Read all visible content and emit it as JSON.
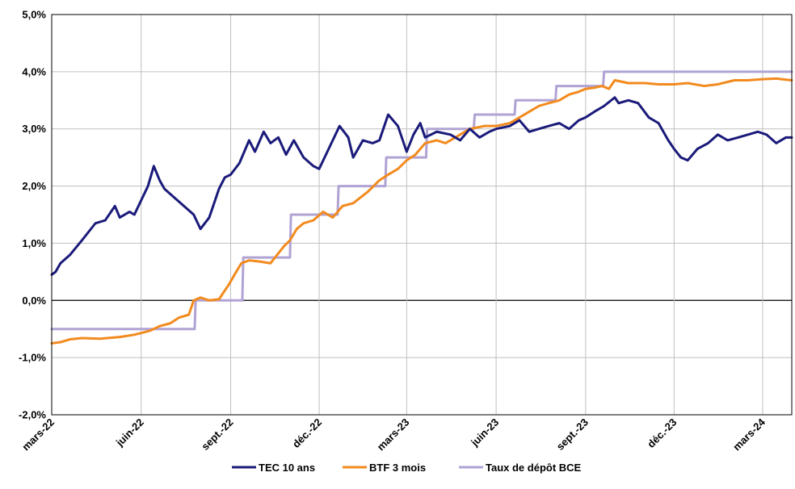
{
  "chart_data": {
    "type": "line",
    "title": "",
    "xlabel": "",
    "ylabel": "",
    "ylim": [
      -2.0,
      5.0
    ],
    "xlim": [
      "2022-03-01",
      "2024-03-31"
    ],
    "y_ticks": [
      -2.0,
      -1.0,
      0.0,
      1.0,
      2.0,
      3.0,
      4.0,
      5.0
    ],
    "y_tick_labels": [
      "-2,0%",
      "-1,0%",
      "0,0%",
      "1,0%",
      "2,0%",
      "3,0%",
      "4,0%",
      "5,0%"
    ],
    "x_ticks": [
      "2022-03-01",
      "2022-06-01",
      "2022-09-01",
      "2022-12-01",
      "2023-03-01",
      "2023-06-01",
      "2023-09-01",
      "2023-12-01",
      "2024-03-01"
    ],
    "x_tick_labels": [
      "mars-22",
      "juin-22",
      "sept.-22",
      "déc.-22",
      "mars-23",
      "juin-23",
      "sept.-23",
      "déc.-23",
      "mars-24"
    ],
    "grid": true,
    "legend_position": "bottom",
    "series": [
      {
        "name": "TEC 10 ans",
        "color": "#1a1a7a",
        "x": [
          "2022-03-01",
          "2022-03-05",
          "2022-03-10",
          "2022-03-20",
          "2022-04-01",
          "2022-04-15",
          "2022-04-25",
          "2022-05-05",
          "2022-05-10",
          "2022-05-20",
          "2022-05-25",
          "2022-06-01",
          "2022-06-08",
          "2022-06-14",
          "2022-06-20",
          "2022-06-25",
          "2022-07-05",
          "2022-07-15",
          "2022-07-25",
          "2022-08-01",
          "2022-08-10",
          "2022-08-20",
          "2022-08-26",
          "2022-09-01",
          "2022-09-10",
          "2022-09-20",
          "2022-09-26",
          "2022-10-05",
          "2022-10-12",
          "2022-10-20",
          "2022-10-28",
          "2022-11-05",
          "2022-11-15",
          "2022-11-25",
          "2022-12-01",
          "2022-12-08",
          "2022-12-15",
          "2022-12-22",
          "2022-12-31",
          "2023-01-05",
          "2023-01-15",
          "2023-01-25",
          "2023-02-01",
          "2023-02-10",
          "2023-02-20",
          "2023-03-01",
          "2023-03-08",
          "2023-03-15",
          "2023-03-20",
          "2023-04-01",
          "2023-04-15",
          "2023-04-25",
          "2023-05-05",
          "2023-05-15",
          "2023-05-25",
          "2023-06-01",
          "2023-06-15",
          "2023-06-25",
          "2023-07-05",
          "2023-07-15",
          "2023-07-25",
          "2023-08-05",
          "2023-08-15",
          "2023-08-25",
          "2023-09-01",
          "2023-09-10",
          "2023-09-20",
          "2023-10-01",
          "2023-10-05",
          "2023-10-15",
          "2023-10-25",
          "2023-11-05",
          "2023-11-15",
          "2023-11-25",
          "2023-12-01",
          "2023-12-08",
          "2023-12-15",
          "2023-12-25",
          "2024-01-05",
          "2024-01-15",
          "2024-01-25",
          "2024-02-05",
          "2024-02-15",
          "2024-02-25",
          "2024-03-05",
          "2024-03-15",
          "2024-03-25",
          "2024-03-31"
        ],
        "y": [
          0.45,
          0.5,
          0.65,
          0.8,
          1.05,
          1.35,
          1.4,
          1.65,
          1.45,
          1.55,
          1.5,
          1.75,
          2.0,
          2.35,
          2.1,
          1.95,
          1.8,
          1.65,
          1.5,
          1.25,
          1.45,
          1.95,
          2.15,
          2.2,
          2.4,
          2.8,
          2.6,
          2.95,
          2.75,
          2.85,
          2.55,
          2.8,
          2.5,
          2.35,
          2.3,
          2.55,
          2.8,
          3.05,
          2.85,
          2.5,
          2.8,
          2.75,
          2.8,
          3.25,
          3.05,
          2.6,
          2.9,
          3.1,
          2.85,
          2.95,
          2.9,
          2.8,
          3.0,
          2.85,
          2.95,
          3.0,
          3.05,
          3.15,
          2.95,
          3.0,
          3.05,
          3.1,
          3.0,
          3.15,
          3.2,
          3.3,
          3.4,
          3.55,
          3.45,
          3.5,
          3.45,
          3.2,
          3.1,
          2.8,
          2.65,
          2.5,
          2.45,
          2.65,
          2.75,
          2.9,
          2.8,
          2.85,
          2.9,
          2.95,
          2.9,
          2.75,
          2.85,
          2.85
        ]
      },
      {
        "name": "BTF 3 mois",
        "color": "#f28a1e",
        "x": [
          "2022-03-01",
          "2022-03-10",
          "2022-03-20",
          "2022-04-01",
          "2022-04-20",
          "2022-05-10",
          "2022-05-25",
          "2022-06-01",
          "2022-06-10",
          "2022-06-20",
          "2022-07-01",
          "2022-07-10",
          "2022-07-20",
          "2022-07-25",
          "2022-08-01",
          "2022-08-10",
          "2022-08-20",
          "2022-08-31",
          "2022-09-05",
          "2022-09-12",
          "2022-09-20",
          "2022-10-01",
          "2022-10-12",
          "2022-10-26",
          "2022-11-01",
          "2022-11-08",
          "2022-11-15",
          "2022-11-25",
          "2022-12-05",
          "2022-12-15",
          "2022-12-25",
          "2023-01-05",
          "2023-01-20",
          "2023-02-01",
          "2023-02-10",
          "2023-02-20",
          "2023-03-01",
          "2023-03-10",
          "2023-03-20",
          "2023-04-01",
          "2023-04-10",
          "2023-04-25",
          "2023-05-05",
          "2023-05-20",
          "2023-06-01",
          "2023-06-15",
          "2023-06-25",
          "2023-07-05",
          "2023-07-15",
          "2023-07-25",
          "2023-08-05",
          "2023-08-15",
          "2023-08-25",
          "2023-09-01",
          "2023-09-10",
          "2023-09-18",
          "2023-09-25",
          "2023-10-01",
          "2023-10-15",
          "2023-11-01",
          "2023-11-15",
          "2023-12-01",
          "2023-12-15",
          "2024-01-01",
          "2024-01-15",
          "2024-02-01",
          "2024-02-15",
          "2024-03-01",
          "2024-03-15",
          "2024-03-31"
        ],
        "y": [
          -0.75,
          -0.73,
          -0.68,
          -0.66,
          -0.67,
          -0.64,
          -0.6,
          -0.57,
          -0.53,
          -0.45,
          -0.4,
          -0.3,
          -0.25,
          0.0,
          0.05,
          0.0,
          0.02,
          0.3,
          0.45,
          0.65,
          0.7,
          0.68,
          0.65,
          0.95,
          1.05,
          1.25,
          1.35,
          1.4,
          1.55,
          1.45,
          1.65,
          1.7,
          1.9,
          2.1,
          2.2,
          2.3,
          2.45,
          2.55,
          2.75,
          2.8,
          2.75,
          2.9,
          3.0,
          3.05,
          3.05,
          3.1,
          3.2,
          3.3,
          3.4,
          3.45,
          3.5,
          3.6,
          3.65,
          3.7,
          3.72,
          3.75,
          3.7,
          3.85,
          3.8,
          3.8,
          3.78,
          3.78,
          3.8,
          3.75,
          3.78,
          3.85,
          3.85,
          3.87,
          3.88,
          3.85
        ]
      },
      {
        "name": "Taux de dépôt BCE",
        "color": "#b0a3d4",
        "x": [
          "2022-03-01",
          "2022-07-26",
          "2022-07-27",
          "2022-09-13",
          "2022-09-14",
          "2022-11-01",
          "2022-11-02",
          "2022-12-20",
          "2022-12-21",
          "2023-02-07",
          "2023-02-08",
          "2023-03-21",
          "2023-03-22",
          "2023-05-09",
          "2023-05-10",
          "2023-06-20",
          "2023-06-21",
          "2023-08-01",
          "2023-08-02",
          "2023-09-19",
          "2023-09-20",
          "2024-03-31"
        ],
        "y": [
          -0.5,
          -0.5,
          0.0,
          0.0,
          0.75,
          0.75,
          1.5,
          1.5,
          2.0,
          2.0,
          2.5,
          2.5,
          3.0,
          3.0,
          3.25,
          3.25,
          3.5,
          3.5,
          3.75,
          3.75,
          4.0,
          4.0
        ]
      }
    ]
  }
}
